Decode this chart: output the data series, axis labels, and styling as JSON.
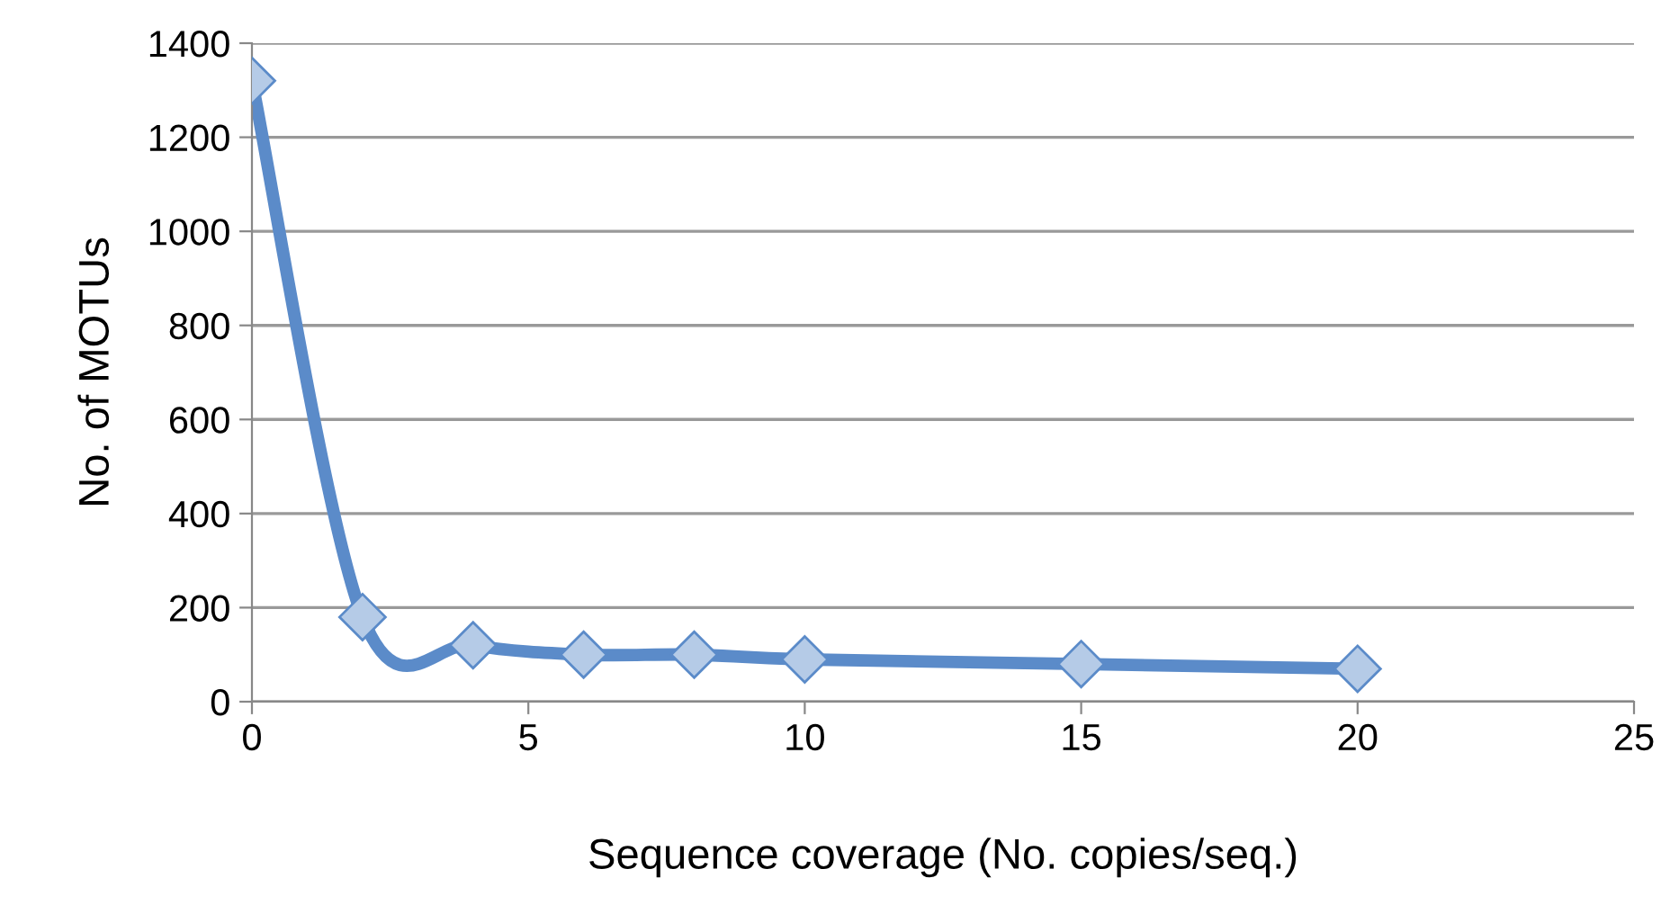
{
  "chart_data": {
    "type": "line",
    "xlabel": "Sequence coverage (No. copies/seq.)",
    "ylabel": "No. of MOTUs",
    "x": [
      0,
      2,
      4,
      6,
      8,
      10,
      15,
      20
    ],
    "series": [
      {
        "color": "#5b8bc9",
        "values": [
          1320,
          180,
          120,
          100,
          100,
          90,
          80,
          70
        ]
      }
    ],
    "xlim": [
      0,
      25
    ],
    "xticks": [
      0,
      5,
      10,
      15,
      20,
      25
    ],
    "ylim": [
      0,
      1400
    ],
    "yticks": [
      0,
      200,
      400,
      600,
      800,
      1000,
      1200,
      1400
    ],
    "grid": "y",
    "marker": "diamond",
    "line_style": "solid",
    "legend": false
  }
}
